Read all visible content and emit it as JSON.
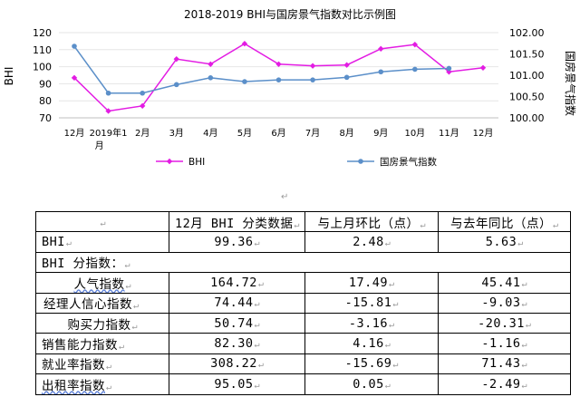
{
  "chart_data": {
    "type": "line",
    "title": "2018-2019 BHI与国房景气指数对比示例图",
    "ylabel_left": "BHI",
    "ylabel_right": "国房景气指数",
    "ylim_left": [
      70,
      120
    ],
    "yticks_left": [
      "70",
      "80",
      "90",
      "100",
      "110",
      "120"
    ],
    "ylim_right": [
      100.0,
      102.0
    ],
    "yticks_right": [
      "100.00",
      "100.50",
      "101.00",
      "101.50",
      "102.00"
    ],
    "categories": [
      "12月",
      "2019年1月",
      "2月",
      "3月",
      "4月",
      "5月",
      "6月",
      "7月",
      "8月",
      "9月",
      "10月",
      "11月",
      "12月"
    ],
    "legend_position": "bottom",
    "series": [
      {
        "name": "BHI",
        "axis": "left",
        "color": "#e31ce3",
        "values": [
          93.5,
          74,
          77,
          104.5,
          101.5,
          113.5,
          101.5,
          100.5,
          101,
          110.5,
          113,
          97,
          99.36
        ]
      },
      {
        "name": "国房景气指数",
        "axis": "right",
        "color": "#5b8fc9",
        "values": [
          101.68,
          100.58,
          100.58,
          100.78,
          100.94,
          100.85,
          100.89,
          100.89,
          100.95,
          101.08,
          101.14,
          101.16,
          null
        ]
      }
    ]
  },
  "table": {
    "header": [
      "",
      "12月 BHI 分类数据",
      "与上月环比（点）",
      "与去年同比（点）"
    ],
    "bhi_row": [
      "BHI",
      "99.36",
      "2.48",
      "5.63"
    ],
    "section_label": "BHI 分指数：",
    "rows": [
      [
        "人气指数",
        "164.72",
        "17.49",
        "45.41"
      ],
      [
        "经理人信心指数",
        "74.44",
        "-15.81",
        "-9.03"
      ],
      [
        "购买力指数",
        "50.74",
        "-3.16",
        "-20.31"
      ],
      [
        "销售能力指数",
        "82.30",
        "4.16",
        "-1.16"
      ],
      [
        "就业率指数",
        "308.22",
        "-15.69",
        "71.43"
      ],
      [
        "出租率指数",
        "95.05",
        "0.05",
        "-2.49"
      ]
    ]
  }
}
